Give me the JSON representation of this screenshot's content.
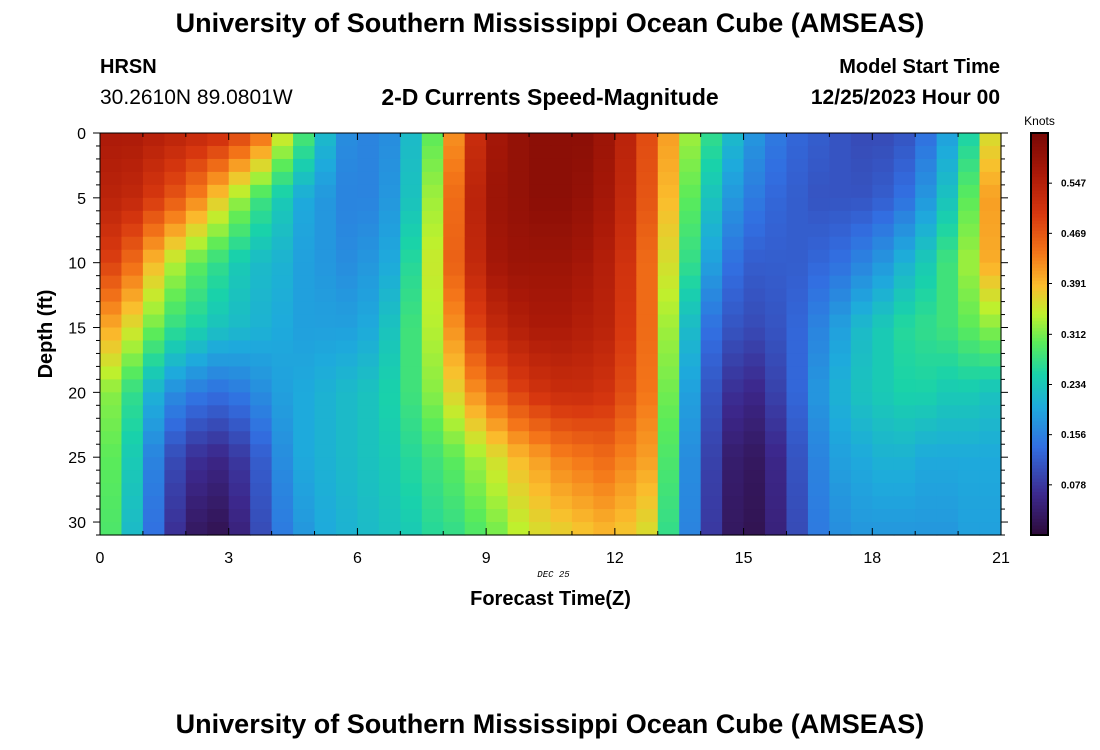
{
  "header": {
    "title": "University of Southern Mississippi Ocean Cube (AMSEAS)",
    "station_name": "HRSN",
    "station_coords": "30.2610N  89.0801W",
    "chart_title": "2-D Currents Speed-Magnitude",
    "model_start_label": "Model Start Time",
    "model_start_value": "12/25/2023 Hour 00"
  },
  "footer": {
    "title": "University of Southern Mississippi Ocean Cube (AMSEAS)"
  },
  "chart_data": {
    "type": "heatmap",
    "title": "2-D Currents Speed-Magnitude",
    "xlabel": "Forecast Time(Z)",
    "ylabel": "Depth (ft)",
    "date_label": "DEC 25",
    "xlim": [
      0,
      21
    ],
    "ylim": [
      0,
      31
    ],
    "x_ticks": [
      0,
      3,
      6,
      9,
      12,
      15,
      18,
      21
    ],
    "y_ticks": [
      0,
      5,
      10,
      15,
      20,
      25,
      30
    ],
    "colorbar": {
      "label": "Knots",
      "min": 0.0,
      "max": 0.625,
      "ticks": [
        "0.078",
        "0.156",
        "0.234",
        "0.312",
        "0.391",
        "0.469",
        "0.547"
      ]
    },
    "time_hours": [
      0.25,
      0.75,
      1.25,
      1.75,
      2.25,
      2.75,
      3.25,
      3.75,
      4.25,
      4.75,
      5.25,
      5.75,
      6.25,
      6.75,
      7.25,
      7.75,
      8.25,
      8.75,
      9.25,
      9.75,
      10.25,
      10.75,
      11.25,
      11.75,
      12.25,
      12.75,
      13.25,
      13.75,
      14.25,
      14.75,
      15.25,
      15.75,
      16.25,
      16.75,
      17.25,
      17.75,
      18.25,
      18.75,
      19.25,
      19.75,
      20.25,
      20.75
    ],
    "depth_levels_ft": [
      0,
      5,
      10,
      15,
      20,
      25,
      31
    ],
    "speed_knots": [
      [
        0.56,
        0.56,
        0.55,
        0.54,
        0.53,
        0.52,
        0.49,
        0.45,
        0.36,
        0.29,
        0.22,
        0.17,
        0.16,
        0.17,
        0.22,
        0.3,
        0.42,
        0.52,
        0.57,
        0.59,
        0.6,
        0.6,
        0.6,
        0.58,
        0.54,
        0.48,
        0.41,
        0.33,
        0.27,
        0.22,
        0.18,
        0.15,
        0.13,
        0.12,
        0.11,
        0.1,
        0.1,
        0.11,
        0.14,
        0.19,
        0.25,
        0.36
      ],
      [
        0.54,
        0.53,
        0.5,
        0.47,
        0.43,
        0.38,
        0.33,
        0.28,
        0.24,
        0.2,
        0.18,
        0.16,
        0.16,
        0.18,
        0.23,
        0.33,
        0.45,
        0.54,
        0.58,
        0.59,
        0.6,
        0.6,
        0.59,
        0.57,
        0.53,
        0.47,
        0.39,
        0.3,
        0.23,
        0.18,
        0.15,
        0.13,
        0.12,
        0.11,
        0.11,
        0.11,
        0.12,
        0.14,
        0.18,
        0.23,
        0.3,
        0.41
      ],
      [
        0.49,
        0.45,
        0.39,
        0.34,
        0.3,
        0.27,
        0.24,
        0.22,
        0.21,
        0.19,
        0.18,
        0.17,
        0.18,
        0.2,
        0.26,
        0.35,
        0.46,
        0.53,
        0.57,
        0.58,
        0.58,
        0.58,
        0.57,
        0.55,
        0.51,
        0.45,
        0.36,
        0.27,
        0.19,
        0.14,
        0.12,
        0.12,
        0.12,
        0.13,
        0.14,
        0.16,
        0.18,
        0.21,
        0.24,
        0.28,
        0.33,
        0.4
      ],
      [
        0.4,
        0.36,
        0.31,
        0.27,
        0.25,
        0.23,
        0.22,
        0.21,
        0.2,
        0.19,
        0.19,
        0.19,
        0.2,
        0.23,
        0.28,
        0.34,
        0.42,
        0.49,
        0.53,
        0.55,
        0.56,
        0.56,
        0.55,
        0.54,
        0.5,
        0.45,
        0.33,
        0.22,
        0.14,
        0.11,
        0.1,
        0.11,
        0.13,
        0.16,
        0.19,
        0.22,
        0.24,
        0.26,
        0.27,
        0.28,
        0.3,
        0.32
      ],
      [
        0.32,
        0.27,
        0.21,
        0.17,
        0.15,
        0.14,
        0.15,
        0.17,
        0.19,
        0.2,
        0.21,
        0.22,
        0.23,
        0.25,
        0.28,
        0.32,
        0.37,
        0.42,
        0.46,
        0.49,
        0.51,
        0.52,
        0.52,
        0.51,
        0.48,
        0.44,
        0.31,
        0.19,
        0.11,
        0.07,
        0.06,
        0.09,
        0.13,
        0.18,
        0.21,
        0.23,
        0.24,
        0.25,
        0.25,
        0.24,
        0.24,
        0.23
      ],
      [
        0.3,
        0.24,
        0.16,
        0.1,
        0.07,
        0.06,
        0.08,
        0.12,
        0.17,
        0.2,
        0.21,
        0.22,
        0.23,
        0.24,
        0.26,
        0.28,
        0.3,
        0.33,
        0.36,
        0.39,
        0.41,
        0.43,
        0.44,
        0.45,
        0.43,
        0.41,
        0.29,
        0.17,
        0.09,
        0.04,
        0.03,
        0.06,
        0.11,
        0.16,
        0.19,
        0.2,
        0.21,
        0.21,
        0.2,
        0.2,
        0.2,
        0.2
      ],
      [
        0.29,
        0.22,
        0.14,
        0.07,
        0.03,
        0.02,
        0.05,
        0.1,
        0.15,
        0.18,
        0.2,
        0.21,
        0.22,
        0.23,
        0.24,
        0.26,
        0.27,
        0.29,
        0.31,
        0.34,
        0.36,
        0.37,
        0.38,
        0.39,
        0.38,
        0.36,
        0.27,
        0.16,
        0.08,
        0.03,
        0.02,
        0.05,
        0.1,
        0.15,
        0.17,
        0.18,
        0.18,
        0.18,
        0.18,
        0.18,
        0.19,
        0.19
      ]
    ]
  }
}
